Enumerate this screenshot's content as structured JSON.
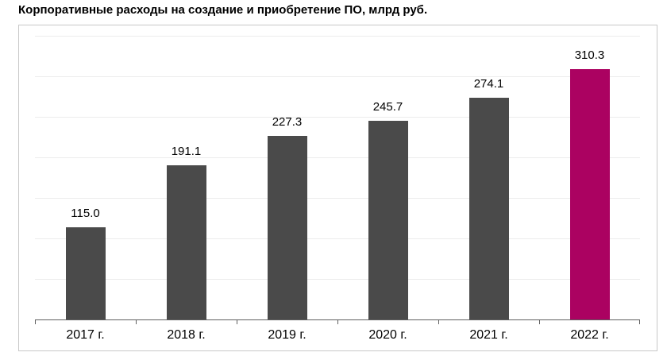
{
  "title": "Корпоративные расходы на создание и приобретение ПО, млрд руб.",
  "chart_data": {
    "type": "bar",
    "title": "Корпоративные расходы на создание и приобретение ПО, млрд руб.",
    "categories": [
      "2017 г.",
      "2018 г.",
      "2019 г.",
      "2020 г.",
      "2021 г.",
      "2022 г."
    ],
    "values": [
      115.0,
      191.1,
      227.3,
      245.7,
      274.1,
      310.3
    ],
    "value_labels": [
      "115.0",
      "191.1",
      "227.3",
      "245.7",
      "274.1",
      "310.3"
    ],
    "xlabel": "",
    "ylabel": "",
    "ylim": [
      0,
      350
    ],
    "gridline_step": 50,
    "grid": true,
    "legend": false,
    "highlight_index": 5
  },
  "colors": {
    "bar_default": "#4a4a4a",
    "bar_highlight": "#ab0261",
    "gridline": "#ececec",
    "axis": "#5f5f5f",
    "chart_border": "#c8c8c8",
    "text": "#000000",
    "background": "#ffffff"
  }
}
